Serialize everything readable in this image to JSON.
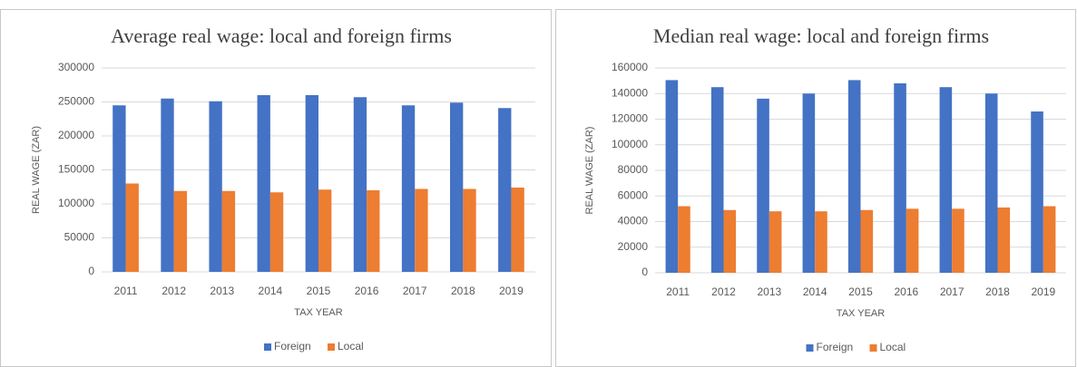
{
  "chart_data": [
    {
      "type": "bar",
      "title": "Average real wage: local and foreign firms",
      "x_label": "TAX YEAR",
      "y_label": "REAL WAGE (ZAR)",
      "categories": [
        "2011",
        "2012",
        "2013",
        "2014",
        "2015",
        "2016",
        "2017",
        "2018",
        "2019"
      ],
      "series": [
        {
          "name": "Foreign",
          "color": "#4472c4",
          "values": [
            245000,
            255000,
            251000,
            260000,
            260000,
            257000,
            245000,
            249000,
            241000
          ]
        },
        {
          "name": "Local",
          "color": "#ed7d31",
          "values": [
            130000,
            119000,
            119000,
            117000,
            121000,
            120000,
            122000,
            122000,
            124000
          ]
        }
      ],
      "ylim": [
        0,
        300000
      ],
      "yticks": [
        0,
        50000,
        100000,
        150000,
        200000,
        250000,
        300000
      ],
      "grid": true,
      "legend": "bottom"
    },
    {
      "type": "bar",
      "title": "Median real wage: local and foreign firms",
      "x_label": "TAX YEAR",
      "y_label": "REAL WAGE (ZAR)",
      "categories": [
        "2011",
        "2012",
        "2013",
        "2014",
        "2015",
        "2016",
        "2017",
        "2018",
        "2019"
      ],
      "series": [
        {
          "name": "Foreign",
          "color": "#4472c4",
          "values": [
            150500,
            145000,
            136000,
            140000,
            150500,
            148000,
            145000,
            140000,
            126000
          ]
        },
        {
          "name": "Local",
          "color": "#ed7d31",
          "values": [
            52000,
            49000,
            48000,
            48000,
            49000,
            50000,
            50000,
            51000,
            52000
          ]
        }
      ],
      "ylim": [
        0,
        160000
      ],
      "yticks": [
        0,
        20000,
        40000,
        60000,
        80000,
        100000,
        120000,
        140000,
        160000
      ],
      "grid": true,
      "legend": "bottom"
    }
  ]
}
